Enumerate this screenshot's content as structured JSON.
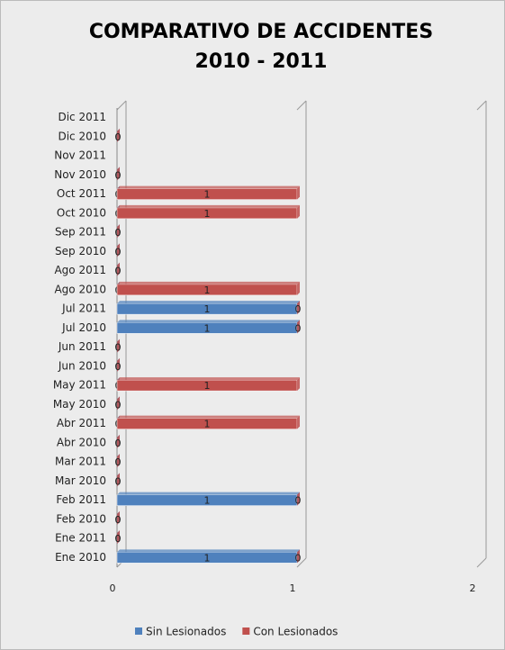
{
  "chart_data": {
    "type": "bar",
    "orientation": "horizontal",
    "stacked": true,
    "title": [
      "COMPARATIVO DE ACCIDENTES",
      "2010 - 2011"
    ],
    "categories": [
      "Ene 2010",
      "Ene 2011",
      "Feb 2010",
      "Feb 2011",
      "Mar 2010",
      "Mar 2011",
      "Abr 2010",
      "Abr 2011",
      "May 2010",
      "May 2011",
      "Jun 2010",
      "Jun 2011",
      "Jul 2010",
      "Jul 2011",
      "Ago 2010",
      "Ago 2011",
      "Sep 2010",
      "Sep 2011",
      "Oct 2010",
      "Oct 2011",
      "Nov 2010",
      "Nov 2011",
      "Dic 2010",
      "Dic 2011"
    ],
    "series": [
      {
        "name": "Sin Lesionados",
        "color": "#4f81bd",
        "values": [
          1,
          0,
          0,
          1,
          0,
          0,
          0,
          0,
          0,
          0,
          0,
          0,
          1,
          1,
          0,
          0,
          0,
          0,
          0,
          0,
          0,
          null,
          0,
          null
        ]
      },
      {
        "name": "Con Lesionados",
        "color": "#c0504d",
        "values": [
          0,
          0,
          0,
          0,
          0,
          0,
          0,
          1,
          0,
          1,
          0,
          0,
          0,
          0,
          1,
          0,
          0,
          0,
          1,
          1,
          0,
          null,
          0,
          null
        ]
      }
    ],
    "xlim": [
      0,
      2
    ],
    "xticks": [
      0,
      1,
      2
    ],
    "legend": "bottom"
  }
}
